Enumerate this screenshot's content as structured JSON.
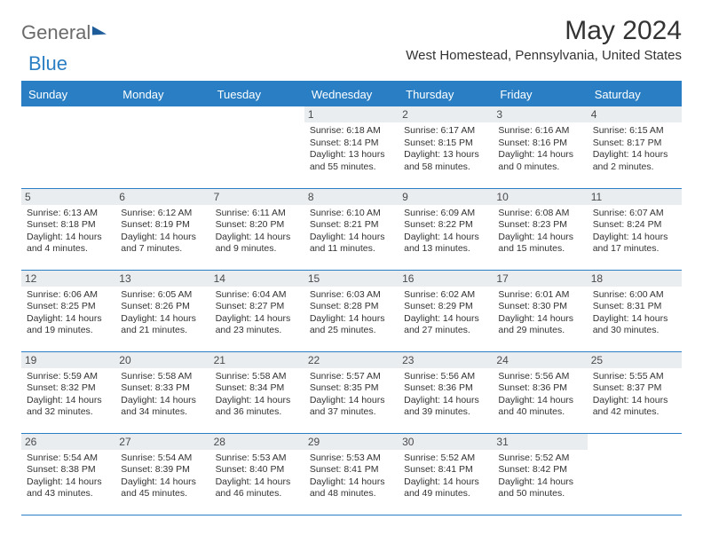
{
  "logo": {
    "part1": "General",
    "part2": "Blue"
  },
  "title": "May 2024",
  "location": "West Homestead, Pennsylvania, United States",
  "colors": {
    "accent": "#2a7fc4",
    "header_bg": "#2a7fc4",
    "header_text": "#ffffff",
    "daynum_bg": "#e9edf0",
    "text": "#333333",
    "logo_gray": "#6b6b6b"
  },
  "weekdays": [
    "Sunday",
    "Monday",
    "Tuesday",
    "Wednesday",
    "Thursday",
    "Friday",
    "Saturday"
  ],
  "weeks": [
    [
      null,
      null,
      null,
      {
        "d": "1",
        "sr": "6:18 AM",
        "ss": "8:14 PM",
        "dl": "13 hours and 55 minutes."
      },
      {
        "d": "2",
        "sr": "6:17 AM",
        "ss": "8:15 PM",
        "dl": "13 hours and 58 minutes."
      },
      {
        "d": "3",
        "sr": "6:16 AM",
        "ss": "8:16 PM",
        "dl": "14 hours and 0 minutes."
      },
      {
        "d": "4",
        "sr": "6:15 AM",
        "ss": "8:17 PM",
        "dl": "14 hours and 2 minutes."
      }
    ],
    [
      {
        "d": "5",
        "sr": "6:13 AM",
        "ss": "8:18 PM",
        "dl": "14 hours and 4 minutes."
      },
      {
        "d": "6",
        "sr": "6:12 AM",
        "ss": "8:19 PM",
        "dl": "14 hours and 7 minutes."
      },
      {
        "d": "7",
        "sr": "6:11 AM",
        "ss": "8:20 PM",
        "dl": "14 hours and 9 minutes."
      },
      {
        "d": "8",
        "sr": "6:10 AM",
        "ss": "8:21 PM",
        "dl": "14 hours and 11 minutes."
      },
      {
        "d": "9",
        "sr": "6:09 AM",
        "ss": "8:22 PM",
        "dl": "14 hours and 13 minutes."
      },
      {
        "d": "10",
        "sr": "6:08 AM",
        "ss": "8:23 PM",
        "dl": "14 hours and 15 minutes."
      },
      {
        "d": "11",
        "sr": "6:07 AM",
        "ss": "8:24 PM",
        "dl": "14 hours and 17 minutes."
      }
    ],
    [
      {
        "d": "12",
        "sr": "6:06 AM",
        "ss": "8:25 PM",
        "dl": "14 hours and 19 minutes."
      },
      {
        "d": "13",
        "sr": "6:05 AM",
        "ss": "8:26 PM",
        "dl": "14 hours and 21 minutes."
      },
      {
        "d": "14",
        "sr": "6:04 AM",
        "ss": "8:27 PM",
        "dl": "14 hours and 23 minutes."
      },
      {
        "d": "15",
        "sr": "6:03 AM",
        "ss": "8:28 PM",
        "dl": "14 hours and 25 minutes."
      },
      {
        "d": "16",
        "sr": "6:02 AM",
        "ss": "8:29 PM",
        "dl": "14 hours and 27 minutes."
      },
      {
        "d": "17",
        "sr": "6:01 AM",
        "ss": "8:30 PM",
        "dl": "14 hours and 29 minutes."
      },
      {
        "d": "18",
        "sr": "6:00 AM",
        "ss": "8:31 PM",
        "dl": "14 hours and 30 minutes."
      }
    ],
    [
      {
        "d": "19",
        "sr": "5:59 AM",
        "ss": "8:32 PM",
        "dl": "14 hours and 32 minutes."
      },
      {
        "d": "20",
        "sr": "5:58 AM",
        "ss": "8:33 PM",
        "dl": "14 hours and 34 minutes."
      },
      {
        "d": "21",
        "sr": "5:58 AM",
        "ss": "8:34 PM",
        "dl": "14 hours and 36 minutes."
      },
      {
        "d": "22",
        "sr": "5:57 AM",
        "ss": "8:35 PM",
        "dl": "14 hours and 37 minutes."
      },
      {
        "d": "23",
        "sr": "5:56 AM",
        "ss": "8:36 PM",
        "dl": "14 hours and 39 minutes."
      },
      {
        "d": "24",
        "sr": "5:56 AM",
        "ss": "8:36 PM",
        "dl": "14 hours and 40 minutes."
      },
      {
        "d": "25",
        "sr": "5:55 AM",
        "ss": "8:37 PM",
        "dl": "14 hours and 42 minutes."
      }
    ],
    [
      {
        "d": "26",
        "sr": "5:54 AM",
        "ss": "8:38 PM",
        "dl": "14 hours and 43 minutes."
      },
      {
        "d": "27",
        "sr": "5:54 AM",
        "ss": "8:39 PM",
        "dl": "14 hours and 45 minutes."
      },
      {
        "d": "28",
        "sr": "5:53 AM",
        "ss": "8:40 PM",
        "dl": "14 hours and 46 minutes."
      },
      {
        "d": "29",
        "sr": "5:53 AM",
        "ss": "8:41 PM",
        "dl": "14 hours and 48 minutes."
      },
      {
        "d": "30",
        "sr": "5:52 AM",
        "ss": "8:41 PM",
        "dl": "14 hours and 49 minutes."
      },
      {
        "d": "31",
        "sr": "5:52 AM",
        "ss": "8:42 PM",
        "dl": "14 hours and 50 minutes."
      },
      null
    ]
  ],
  "labels": {
    "sunrise": "Sunrise:",
    "sunset": "Sunset:",
    "daylight": "Daylight:"
  }
}
